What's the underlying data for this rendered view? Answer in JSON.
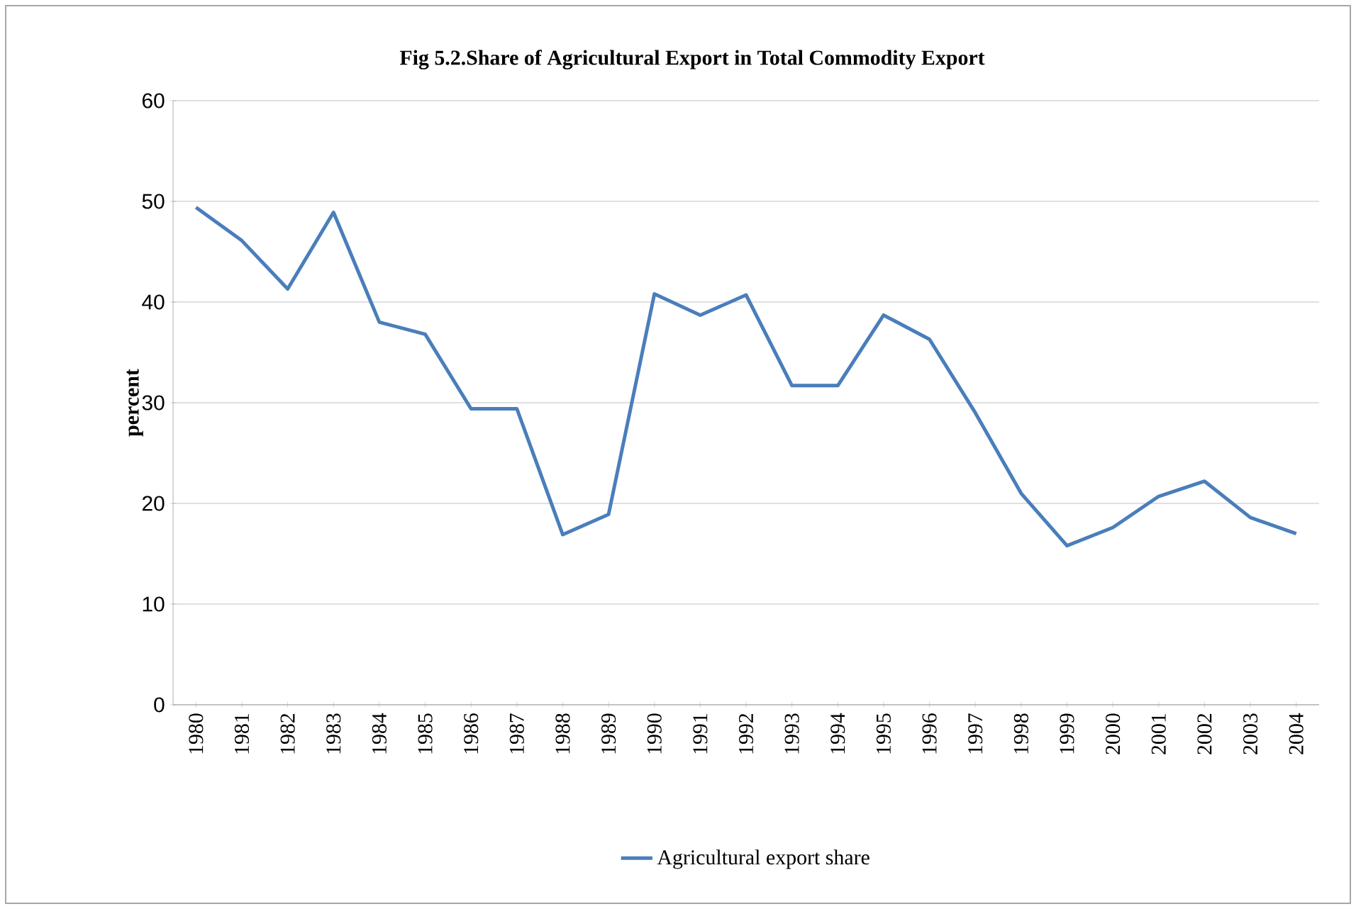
{
  "chart_data": {
    "type": "line",
    "title": "Fig 5.2.Share of Agricultural Export in Total Commodity Export",
    "ylabel": "percent",
    "categories": [
      "1980",
      "1981",
      "1982",
      "1983",
      "1984",
      "1985",
      "1986",
      "1987",
      "1988",
      "1989",
      "1990",
      "1991",
      "1992",
      "1993",
      "1994",
      "1995",
      "1996",
      "1997",
      "1998",
      "1999",
      "2000",
      "2001",
      "2002",
      "2003",
      "2004"
    ],
    "series": [
      {
        "name": "Agricultural export share",
        "color": "#4a7ebb",
        "values": [
          49.4,
          46.1,
          41.3,
          48.9,
          38.0,
          36.8,
          29.4,
          29.4,
          16.9,
          18.9,
          40.8,
          38.7,
          40.7,
          31.7,
          31.7,
          38.7,
          36.3,
          29.0,
          21.0,
          15.8,
          17.6,
          20.7,
          22.2,
          18.6,
          17.0
        ]
      }
    ],
    "ylim": [
      0,
      60
    ],
    "yticks": [
      0,
      10,
      20,
      30,
      40,
      50,
      60
    ],
    "grid": "y",
    "legend": "bottom",
    "marker": "none",
    "line_style": "solid"
  }
}
